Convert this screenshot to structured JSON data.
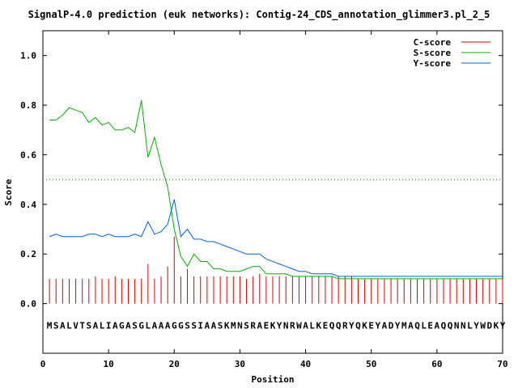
{
  "chart_data": {
    "type": "line",
    "title": "SignalP-4.0 prediction (euk networks): Contig-24_CDS_annotation_glimmer3.pl_2_5",
    "xlabel": "Position",
    "ylabel": "Score",
    "xlim": [
      0,
      70
    ],
    "ylim": [
      -0.2,
      1.1
    ],
    "xticks": [
      0,
      10,
      20,
      30,
      40,
      50,
      60,
      70
    ],
    "yticks": [
      0.0,
      0.2,
      0.4,
      0.6,
      0.8,
      1.0
    ],
    "ytick_labels": [
      "0.0",
      "0.2",
      "0.4",
      "0.6",
      "0.8",
      "1.0"
    ],
    "threshold": 0.5,
    "legend_position": "top-right",
    "sequence": "MSALVTSALIAGASGLAAAGGSSIAASKMNSRAEKYNRWALKEQQRYQKEYADYMAQLEAQQNNLYWDKY",
    "x": [
      1,
      2,
      3,
      4,
      5,
      6,
      7,
      8,
      9,
      10,
      11,
      12,
      13,
      14,
      15,
      16,
      17,
      18,
      19,
      20,
      21,
      22,
      23,
      24,
      25,
      26,
      27,
      28,
      29,
      30,
      31,
      32,
      33,
      34,
      35,
      36,
      37,
      38,
      39,
      40,
      41,
      42,
      43,
      44,
      45,
      46,
      47,
      48,
      49,
      50,
      51,
      52,
      53,
      54,
      55,
      56,
      57,
      58,
      59,
      60,
      61,
      62,
      63,
      64,
      65,
      66,
      67,
      68,
      69,
      70
    ],
    "series": [
      {
        "name": "C-score",
        "color": "#e00000",
        "style": "impulse",
        "values": [
          0.1,
          0.1,
          0.1,
          0.1,
          0.1,
          0.1,
          0.1,
          0.11,
          0.1,
          0.1,
          0.11,
          0.1,
          0.1,
          0.1,
          0.1,
          0.16,
          0.1,
          0.11,
          0.15,
          0.27,
          0.11,
          0.14,
          0.11,
          0.11,
          0.11,
          0.11,
          0.11,
          0.11,
          0.11,
          0.11,
          0.1,
          0.11,
          0.12,
          0.11,
          0.11,
          0.11,
          0.11,
          0.11,
          0.11,
          0.11,
          0.11,
          0.11,
          0.11,
          0.11,
          0.11,
          0.11,
          0.11,
          0.1,
          0.1,
          0.1,
          0.1,
          0.1,
          0.1,
          0.1,
          0.1,
          0.1,
          0.1,
          0.1,
          0.1,
          0.1,
          0.1,
          0.1,
          0.1,
          0.1,
          0.1,
          0.1,
          0.1,
          0.1,
          0.1,
          0.1
        ]
      },
      {
        "name": "S-score",
        "color": "#00b000",
        "style": "line",
        "values": [
          0.74,
          0.74,
          0.76,
          0.79,
          0.78,
          0.77,
          0.73,
          0.75,
          0.72,
          0.73,
          0.7,
          0.7,
          0.71,
          0.69,
          0.82,
          0.59,
          0.67,
          0.56,
          0.47,
          0.3,
          0.19,
          0.15,
          0.2,
          0.17,
          0.17,
          0.14,
          0.14,
          0.13,
          0.13,
          0.13,
          0.14,
          0.15,
          0.15,
          0.12,
          0.12,
          0.12,
          0.12,
          0.11,
          0.11,
          0.11,
          0.11,
          0.11,
          0.11,
          0.11,
          0.1,
          0.1,
          0.1,
          0.1,
          0.1,
          0.1,
          0.1,
          0.1,
          0.1,
          0.1,
          0.1,
          0.1,
          0.1,
          0.1,
          0.1,
          0.1,
          0.1,
          0.1,
          0.1,
          0.1,
          0.1,
          0.1,
          0.1,
          0.1,
          0.1,
          0.1
        ]
      },
      {
        "name": "Y-score",
        "color": "#0060e0",
        "style": "line",
        "values": [
          0.27,
          0.28,
          0.27,
          0.27,
          0.27,
          0.27,
          0.28,
          0.28,
          0.27,
          0.28,
          0.27,
          0.27,
          0.27,
          0.28,
          0.27,
          0.33,
          0.28,
          0.29,
          0.32,
          0.42,
          0.27,
          0.3,
          0.26,
          0.26,
          0.25,
          0.25,
          0.24,
          0.23,
          0.22,
          0.21,
          0.2,
          0.2,
          0.2,
          0.18,
          0.17,
          0.16,
          0.15,
          0.14,
          0.13,
          0.13,
          0.12,
          0.12,
          0.12,
          0.12,
          0.11,
          0.11,
          0.11,
          0.11,
          0.11,
          0.11,
          0.11,
          0.11,
          0.11,
          0.11,
          0.11,
          0.11,
          0.11,
          0.11,
          0.11,
          0.11,
          0.11,
          0.11,
          0.11,
          0.11,
          0.11,
          0.11,
          0.11,
          0.11,
          0.11,
          0.11
        ]
      }
    ]
  }
}
